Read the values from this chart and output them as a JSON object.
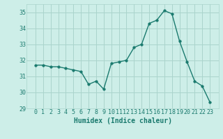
{
  "xlabel": "Humidex (Indice chaleur)",
  "x": [
    0,
    1,
    2,
    3,
    4,
    5,
    6,
    7,
    8,
    9,
    10,
    11,
    12,
    13,
    14,
    15,
    16,
    17,
    18,
    19,
    20,
    21,
    22,
    23
  ],
  "y": [
    31.7,
    31.7,
    31.6,
    31.6,
    31.5,
    31.4,
    31.3,
    30.5,
    30.7,
    30.2,
    31.8,
    31.9,
    32.0,
    32.8,
    33.0,
    34.3,
    34.5,
    35.1,
    34.9,
    33.2,
    31.9,
    30.7,
    30.4,
    29.4
  ],
  "line_color": "#1a7a6e",
  "marker": "o",
  "markersize": 2.5,
  "linewidth": 1.0,
  "bg_color": "#cdeee8",
  "grid_color": "#aad4cc",
  "ylim": [
    29,
    35.5
  ],
  "yticks": [
    29,
    30,
    31,
    32,
    33,
    34,
    35
  ],
  "xticks": [
    0,
    1,
    2,
    3,
    4,
    5,
    6,
    7,
    8,
    9,
    10,
    11,
    12,
    13,
    14,
    15,
    16,
    17,
    18,
    19,
    20,
    21,
    22,
    23
  ],
  "tick_fontsize": 6,
  "xlabel_fontsize": 7,
  "tick_color": "#1a7a6e",
  "label_color": "#1a7a6e"
}
